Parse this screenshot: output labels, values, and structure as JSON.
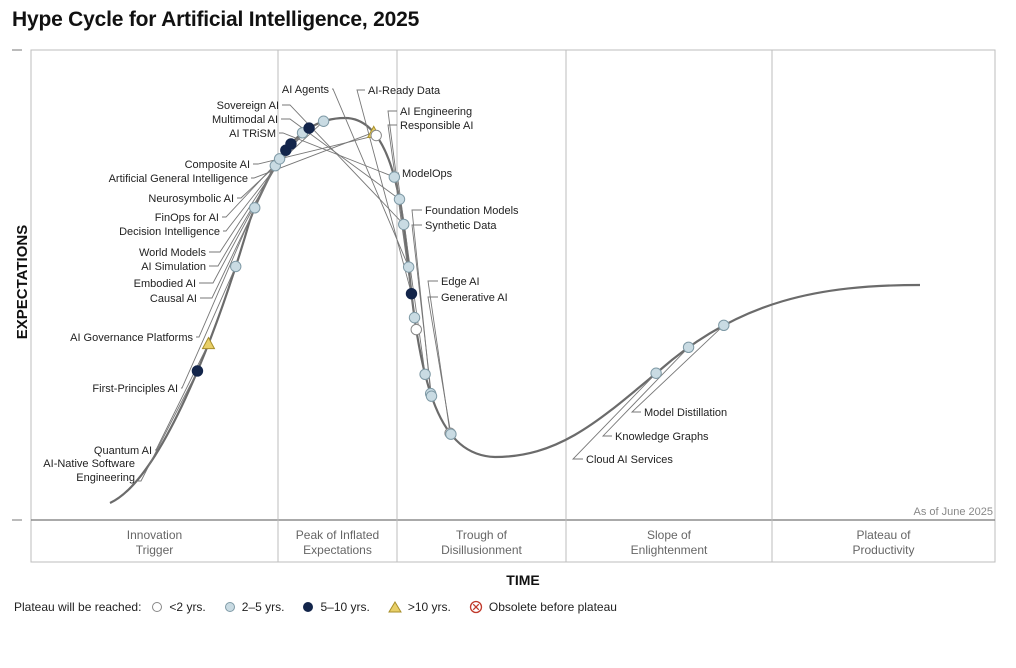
{
  "chart_data": {
    "type": "line",
    "title": "Hype Cycle for Artificial Intelligence, 2025",
    "xlabel": "TIME",
    "ylabel": "EXPECTATIONS",
    "as_of": "As of June 2025",
    "phases": [
      "Innovation\nTrigger",
      "Peak of Inflated\nExpectations",
      "Trough of\nDisillusionment",
      "Slope of\nEnlightenment",
      "Plateau of\nProductivity"
    ],
    "legend": {
      "title": "Plateau will be reached:",
      "items": [
        {
          "key": "lt2",
          "label": "<2 yrs.",
          "marker": "circle-white"
        },
        {
          "key": "2to5",
          "label": "2–5 yrs.",
          "marker": "circle-lightblue"
        },
        {
          "key": "5to10",
          "label": "5–10 yrs.",
          "marker": "circle-navy"
        },
        {
          "key": "gt10",
          "label": ">10 yrs.",
          "marker": "triangle-yellow"
        },
        {
          "key": "obsolete",
          "label": "Obsolete before plateau",
          "marker": "circle-x-red"
        }
      ]
    },
    "colors": {
      "lt2": "#ffffff",
      "2to5": "#c9dbe3",
      "5to10": "#13254a",
      "gt10": "#e8cf68",
      "obsolete": "#c0392b",
      "curve": "#6b6b6b",
      "grid": "#bdbdbd"
    },
    "technologies": [
      {
        "name": "AI-Native Software\nEngineering",
        "category": "5to10",
        "t": 0.12
      },
      {
        "name": "Quantum AI",
        "category": "gt10",
        "t": 0.142
      },
      {
        "name": "First-Principles AI",
        "category": "2to5",
        "t": 0.203
      },
      {
        "name": "AI Governance Platforms",
        "category": "2to5",
        "t": 0.249
      },
      {
        "name": "Causal AI",
        "category": "2to5",
        "t": 0.284
      },
      {
        "name": "Embodied AI",
        "category": "2to5",
        "t": 0.29
      },
      {
        "name": "AI Simulation",
        "category": "5to10",
        "t": 0.298
      },
      {
        "name": "World Models",
        "category": "5to10",
        "t": 0.304
      },
      {
        "name": "Decision Intelligence",
        "category": "2to5",
        "t": 0.316
      },
      {
        "name": "FinOps for AI",
        "category": "5to10",
        "t": 0.322
      },
      {
        "name": "Neurosymbolic AI",
        "category": "2to5",
        "t": 0.334
      },
      {
        "name": "Artificial General Intelligence",
        "category": "gt10",
        "t": 0.375
      },
      {
        "name": "Composite AI",
        "category": "lt2",
        "t": 0.378
      },
      {
        "name": "AI TRiSM",
        "category": "2to5",
        "t": 0.412
      },
      {
        "name": "Multimodal AI",
        "category": "2to5",
        "t": 0.429
      },
      {
        "name": "Sovereign AI",
        "category": "2to5",
        "t": 0.448
      },
      {
        "name": "AI Agents",
        "category": "2to5",
        "t": 0.48
      },
      {
        "name": "AI-Ready Data",
        "category": "5to10",
        "t": 0.5
      },
      {
        "name": "AI Engineering",
        "category": "2to5",
        "t": 0.518
      },
      {
        "name": "Responsible AI",
        "category": "lt2",
        "t": 0.527
      },
      {
        "name": "ModelOps",
        "category": "2to5",
        "t": 0.561
      },
      {
        "name": "Foundation Models",
        "category": "2to5",
        "t": 0.576
      },
      {
        "name": "Synthetic Data",
        "category": "2to5",
        "t": 0.578
      },
      {
        "name": "Edge AI",
        "category": "lt2",
        "t": 0.609
      },
      {
        "name": "Generative AI",
        "category": "2to5",
        "t": 0.61
      },
      {
        "name": "Cloud AI Services",
        "category": "2to5",
        "t": 0.787
      },
      {
        "name": "Knowledge Graphs",
        "category": "2to5",
        "t": 0.818
      },
      {
        "name": "Model Distillation",
        "category": "2to5",
        "t": 0.849
      }
    ]
  }
}
